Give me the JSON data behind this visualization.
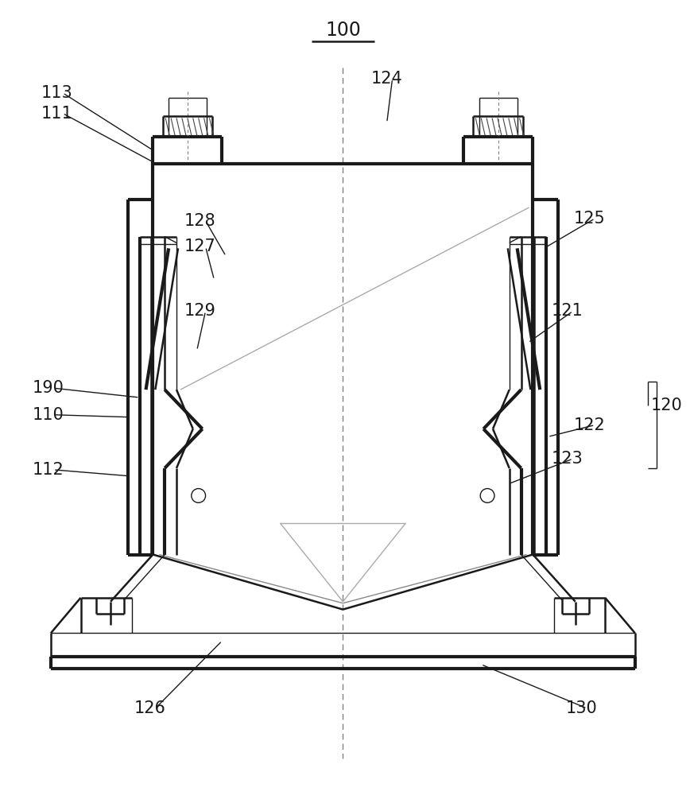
{
  "bg_color": "#ffffff",
  "line_color": "#1a1a1a",
  "label_color": "#1a1a1a",
  "lw_thick": 3.0,
  "lw_med": 1.8,
  "lw_thin": 1.0
}
